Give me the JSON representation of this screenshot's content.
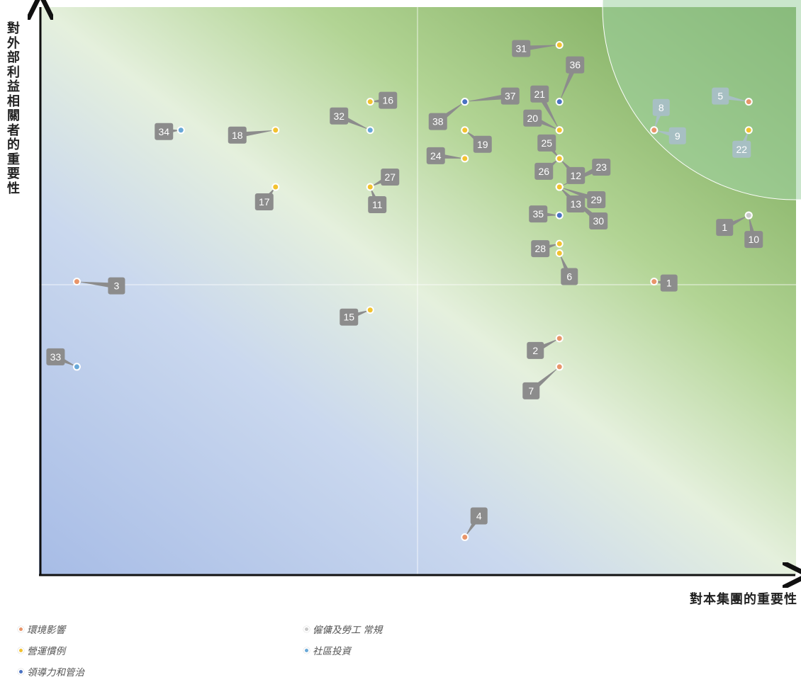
{
  "chart_data": {
    "type": "scatter",
    "title": "",
    "xlabel": "對本集團的重要性",
    "ylabel": "對外部利益相關者的重要性",
    "xlim": [
      0,
      8
    ],
    "ylim": [
      0,
      6
    ],
    "grid": false,
    "quadrant_divider": {
      "x": 4,
      "y": 3
    },
    "legend_position": "bottom-left",
    "categories": [
      {
        "id": "env",
        "name": "環境影響",
        "color": "#e8956a"
      },
      {
        "id": "ops",
        "name": "營運慣例",
        "color": "#f2c230"
      },
      {
        "id": "gov",
        "name": "領導力和管治",
        "color": "#4a72c2"
      },
      {
        "id": "emp",
        "name": "僱傭及勞工 常規",
        "color": "#c8c8c8"
      },
      {
        "id": "com",
        "name": "社區投資",
        "color": "#69a8d8"
      }
    ],
    "points": [
      {
        "label": "1",
        "category": "env",
        "x": 6.5,
        "y": 3.1
      },
      {
        "label": "1",
        "category": "gov",
        "x": 7.5,
        "y": 3.8
      },
      {
        "label": "2",
        "category": "env",
        "x": 5.5,
        "y": 2.5
      },
      {
        "label": "3",
        "category": "env",
        "x": 0.4,
        "y": 3.1
      },
      {
        "label": "4",
        "category": "env",
        "x": 4.5,
        "y": 0.4
      },
      {
        "label": "5",
        "category": "env",
        "x": 7.5,
        "y": 5.0
      },
      {
        "label": "6",
        "category": "ops",
        "x": 5.5,
        "y": 3.4
      },
      {
        "label": "7",
        "category": "env",
        "x": 5.5,
        "y": 2.2
      },
      {
        "label": "8",
        "category": "env",
        "x": 6.5,
        "y": 4.7
      },
      {
        "label": "9",
        "category": "env",
        "x": 6.5,
        "y": 4.7
      },
      {
        "label": "10",
        "category": "emp",
        "x": 7.5,
        "y": 3.8
      },
      {
        "label": "11",
        "category": "ops",
        "x": 3.5,
        "y": 4.1
      },
      {
        "label": "12",
        "category": "ops",
        "x": 5.5,
        "y": 4.4
      },
      {
        "label": "13",
        "category": "ops",
        "x": 5.5,
        "y": 4.1
      },
      {
        "label": "15",
        "category": "ops",
        "x": 3.5,
        "y": 2.8
      },
      {
        "label": "16",
        "category": "ops",
        "x": 3.5,
        "y": 5.0
      },
      {
        "label": "17",
        "category": "ops",
        "x": 2.5,
        "y": 4.1
      },
      {
        "label": "18",
        "category": "ops",
        "x": 2.5,
        "y": 4.7
      },
      {
        "label": "19",
        "category": "ops",
        "x": 4.5,
        "y": 4.7
      },
      {
        "label": "20",
        "category": "ops",
        "x": 5.5,
        "y": 4.7
      },
      {
        "label": "21",
        "category": "ops",
        "x": 5.5,
        "y": 4.7
      },
      {
        "label": "22",
        "category": "ops",
        "x": 7.5,
        "y": 4.7
      },
      {
        "label": "23",
        "category": "ops",
        "x": 5.5,
        "y": 4.1
      },
      {
        "label": "24",
        "category": "ops",
        "x": 4.5,
        "y": 4.4
      },
      {
        "label": "25",
        "category": "ops",
        "x": 5.5,
        "y": 4.4
      },
      {
        "label": "26",
        "category": "ops",
        "x": 5.5,
        "y": 4.4
      },
      {
        "label": "27",
        "category": "ops",
        "x": 3.5,
        "y": 4.1
      },
      {
        "label": "28",
        "category": "ops",
        "x": 5.5,
        "y": 3.5
      },
      {
        "label": "29",
        "category": "ops",
        "x": 5.5,
        "y": 4.1
      },
      {
        "label": "30",
        "category": "ops",
        "x": 5.5,
        "y": 4.1
      },
      {
        "label": "31",
        "category": "ops",
        "x": 5.5,
        "y": 5.6
      },
      {
        "label": "32",
        "category": "com",
        "x": 3.5,
        "y": 4.7
      },
      {
        "label": "33",
        "category": "com",
        "x": 0.4,
        "y": 2.2
      },
      {
        "label": "34",
        "category": "com",
        "x": 1.5,
        "y": 4.7
      },
      {
        "label": "35",
        "category": "gov",
        "x": 5.5,
        "y": 3.8
      },
      {
        "label": "36",
        "category": "gov",
        "x": 5.5,
        "y": 5.0
      },
      {
        "label": "37",
        "category": "gov",
        "x": 4.5,
        "y": 5.0
      },
      {
        "label": "38",
        "category": "gov",
        "x": 4.5,
        "y": 5.0
      }
    ]
  }
}
